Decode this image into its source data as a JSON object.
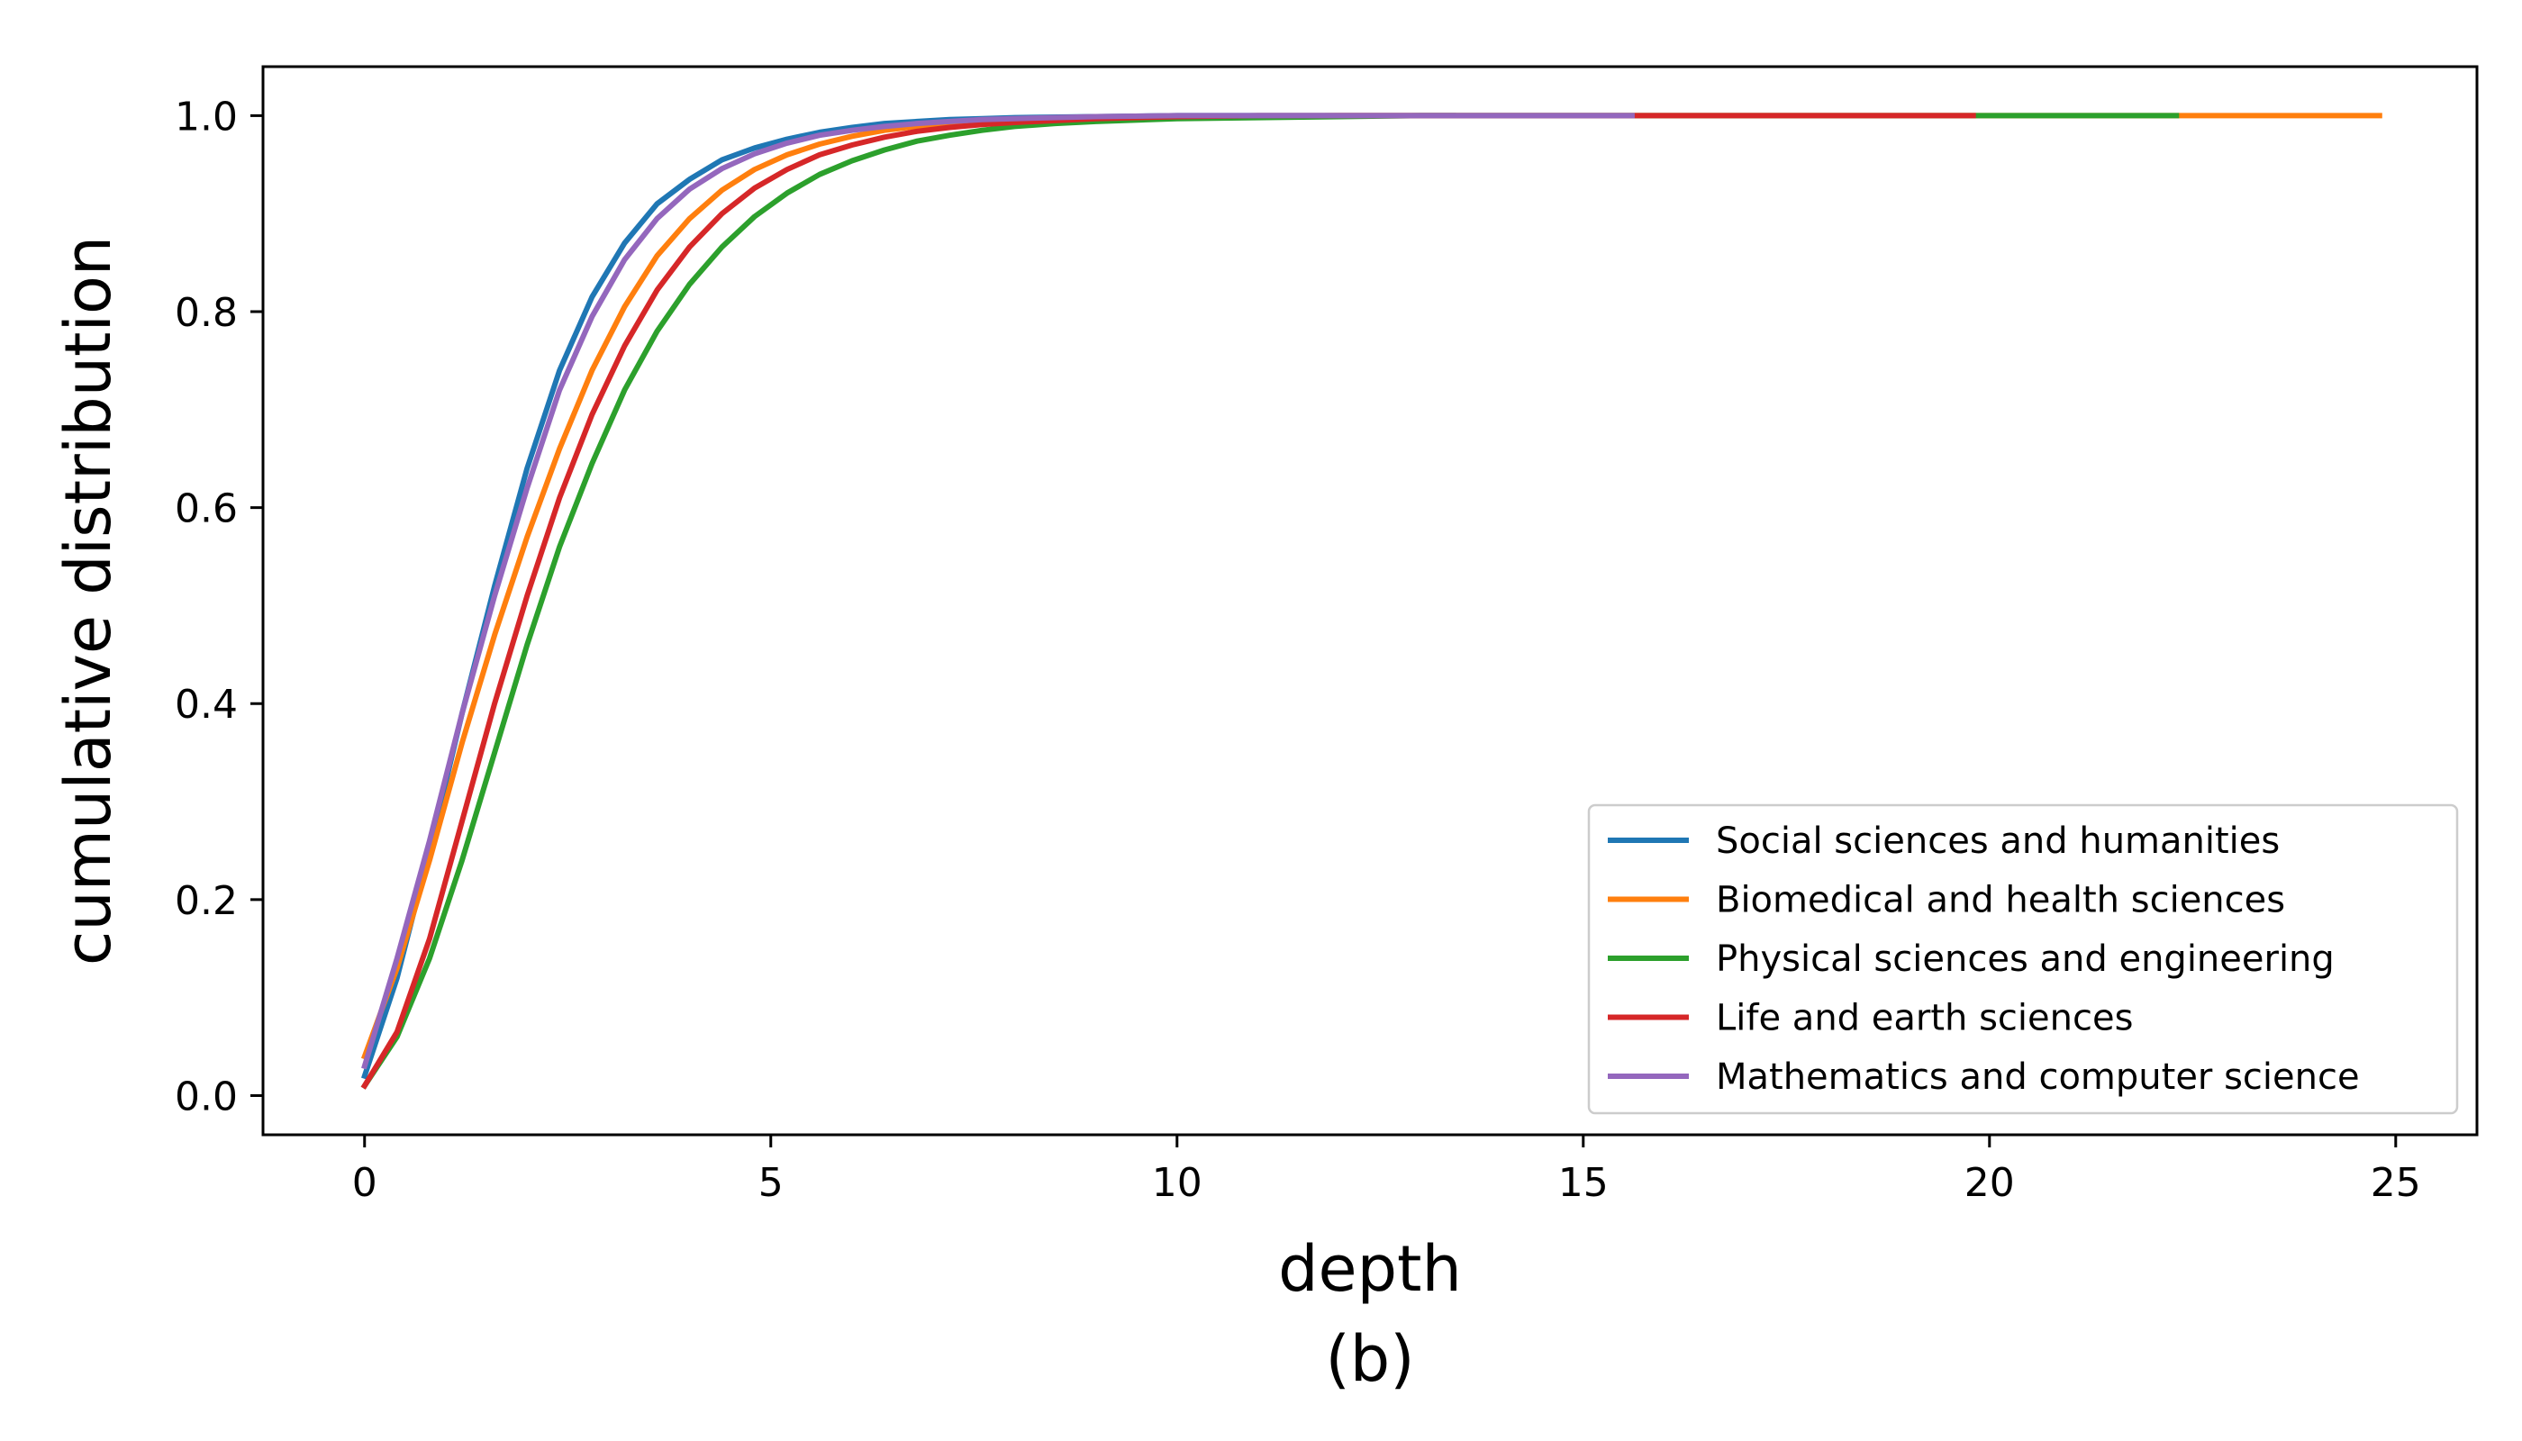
{
  "chart_data": {
    "type": "line",
    "title": "",
    "xlabel": "depth",
    "ylabel": "cumulative distribution",
    "caption": "(b)",
    "xlim": [
      -1.25,
      26.0
    ],
    "ylim": [
      -0.04,
      1.05
    ],
    "xticks": [
      0,
      5,
      10,
      15,
      20,
      25
    ],
    "yticks": [
      0.0,
      0.2,
      0.4,
      0.6,
      0.8,
      1.0
    ],
    "xtick_labels": [
      "0",
      "5",
      "10",
      "15",
      "20",
      "25"
    ],
    "ytick_labels": [
      "0.0",
      "0.2",
      "0.4",
      "0.6",
      "0.8",
      "1.0"
    ],
    "grid": false,
    "legend_position": "lower right",
    "series": [
      {
        "name": "Social sciences and humanities",
        "color": "#1f77b4",
        "x": [
          0,
          0.4,
          0.8,
          1.2,
          1.6,
          2.0,
          2.4,
          2.8,
          3.2,
          3.6,
          4.0,
          4.4,
          4.8,
          5.2,
          5.6,
          6.0,
          6.4,
          6.8,
          7.2,
          7.6,
          8.0,
          9.0,
          10.0,
          11.0,
          12.0,
          13.4
        ],
        "values": [
          0.02,
          0.12,
          0.25,
          0.39,
          0.52,
          0.64,
          0.74,
          0.815,
          0.87,
          0.91,
          0.935,
          0.955,
          0.967,
          0.976,
          0.983,
          0.988,
          0.992,
          0.994,
          0.996,
          0.997,
          0.998,
          0.999,
          1.0,
          1.0,
          1.0,
          1.0
        ]
      },
      {
        "name": "Biomedical and health sciences",
        "color": "#ff7f0e",
        "x": [
          0,
          0.4,
          0.8,
          1.2,
          1.6,
          2.0,
          2.4,
          2.8,
          3.2,
          3.6,
          4.0,
          4.4,
          4.8,
          5.2,
          5.6,
          6.0,
          6.4,
          6.8,
          7.2,
          7.6,
          8.0,
          9.0,
          10.0,
          12.0,
          15.0,
          20.0,
          24.8
        ],
        "values": [
          0.04,
          0.13,
          0.24,
          0.36,
          0.47,
          0.57,
          0.66,
          0.74,
          0.805,
          0.857,
          0.895,
          0.924,
          0.945,
          0.96,
          0.971,
          0.979,
          0.985,
          0.989,
          0.992,
          0.994,
          0.996,
          0.998,
          0.999,
          1.0,
          1.0,
          1.0,
          1.0
        ]
      },
      {
        "name": "Physical sciences and engineering",
        "color": "#2ca02c",
        "x": [
          0,
          0.4,
          0.8,
          1.2,
          1.6,
          2.0,
          2.4,
          2.8,
          3.2,
          3.6,
          4.0,
          4.4,
          4.8,
          5.2,
          5.6,
          6.0,
          6.4,
          6.8,
          7.2,
          7.6,
          8.0,
          8.5,
          9.0,
          10.0,
          11.0,
          12.0,
          13.0,
          15.0,
          18.0,
          22.3
        ],
        "values": [
          0.01,
          0.06,
          0.14,
          0.24,
          0.35,
          0.46,
          0.56,
          0.645,
          0.72,
          0.78,
          0.828,
          0.866,
          0.897,
          0.921,
          0.94,
          0.954,
          0.965,
          0.974,
          0.98,
          0.985,
          0.989,
          0.992,
          0.994,
          0.997,
          0.998,
          0.999,
          1.0,
          1.0,
          1.0,
          1.0
        ]
      },
      {
        "name": "Life and earth sciences",
        "color": "#d62728",
        "x": [
          0,
          0.4,
          0.8,
          1.2,
          1.6,
          2.0,
          2.4,
          2.8,
          3.2,
          3.6,
          4.0,
          4.4,
          4.8,
          5.2,
          5.6,
          6.0,
          6.4,
          6.8,
          7.2,
          7.6,
          8.0,
          9.0,
          10.0,
          11.0,
          12.0,
          15.0,
          19.8
        ],
        "values": [
          0.01,
          0.065,
          0.16,
          0.28,
          0.4,
          0.51,
          0.61,
          0.695,
          0.765,
          0.822,
          0.866,
          0.9,
          0.926,
          0.945,
          0.96,
          0.97,
          0.978,
          0.984,
          0.988,
          0.991,
          0.993,
          0.997,
          0.999,
          1.0,
          1.0,
          1.0,
          1.0
        ]
      },
      {
        "name": "Mathematics and computer science",
        "color": "#9467bd",
        "x": [
          0,
          0.4,
          0.8,
          1.2,
          1.6,
          2.0,
          2.4,
          2.8,
          3.2,
          3.6,
          4.0,
          4.4,
          4.8,
          5.2,
          5.6,
          6.0,
          6.4,
          6.8,
          7.2,
          7.6,
          8.0,
          9.0,
          10.0,
          12.0,
          15.6
        ],
        "values": [
          0.03,
          0.14,
          0.26,
          0.39,
          0.51,
          0.62,
          0.72,
          0.795,
          0.853,
          0.895,
          0.925,
          0.946,
          0.961,
          0.972,
          0.98,
          0.985,
          0.989,
          0.992,
          0.994,
          0.996,
          0.997,
          0.999,
          1.0,
          1.0,
          1.0
        ]
      }
    ]
  }
}
